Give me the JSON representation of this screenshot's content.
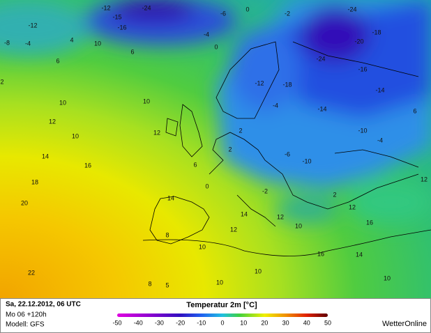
{
  "header": {
    "date": "Sa, 22.12.2012, 06 UTC",
    "run": "Mo 06 +120h",
    "model": "Modell: GFS"
  },
  "legend": {
    "title": "Temperatur 2m [°C]",
    "ticks": [
      -50,
      -40,
      -30,
      -20,
      -10,
      0,
      10,
      20,
      30,
      40,
      50
    ]
  },
  "brand": "WetterOnline",
  "map_labels": [
    -12,
    -15,
    -24,
    -16,
    -12,
    -8,
    -4,
    4,
    10,
    6,
    6,
    2,
    10,
    10,
    12,
    10,
    12,
    14,
    16,
    18,
    20,
    22,
    5,
    8,
    10,
    10,
    10,
    10,
    8,
    12,
    14,
    14,
    6,
    0,
    0,
    -2,
    -24,
    -18,
    -20,
    -24,
    -16,
    -14,
    -14,
    -10,
    -4,
    6,
    12,
    2,
    12,
    16,
    16,
    14,
    2,
    -6,
    -10,
    -2,
    12,
    10,
    -4,
    -6,
    -4,
    0,
    -12,
    -18,
    2
  ]
}
